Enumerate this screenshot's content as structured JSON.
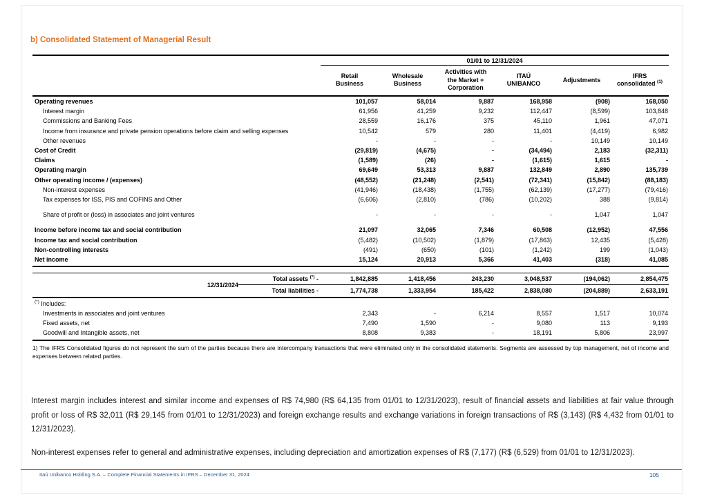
{
  "page": {
    "title": "b) Consolidated Statement of Managerial Result",
    "footer": {
      "left": "Itaú Unibanco Holding S.A. – Complete Financial Statements in IFRS – December 31, 2024",
      "page_number": "105"
    },
    "colors": {
      "title_orange": "#E2711D",
      "footer_blue": "#2A5A8C",
      "text": "#000000"
    }
  },
  "table": {
    "period_header": "01/01 to 12/31/2024",
    "columns": [
      {
        "lines": [
          "Retail",
          "Business"
        ]
      },
      {
        "lines": [
          "Wholesale",
          "Business"
        ]
      },
      {
        "lines": [
          "Activities with",
          "the Market +",
          "Corporation"
        ]
      },
      {
        "lines": [
          "ITAÚ",
          "UNIBANCO"
        ]
      },
      {
        "lines": [
          "Adjustments"
        ]
      },
      {
        "lines": [
          "IFRS",
          "consolidated"
        ],
        "sup": "(1)"
      }
    ],
    "rows": [
      {
        "label": "Operating revenues",
        "bold_label": true,
        "bold_values": true,
        "indent": false,
        "values": [
          "101,057",
          "58,014",
          "9,887",
          "168,958",
          "(908)",
          "168,050"
        ]
      },
      {
        "label": "Interest margin",
        "bold_label": false,
        "bold_values": false,
        "indent": true,
        "values": [
          "61,956",
          "41,259",
          "9,232",
          "112,447",
          "(8,599)",
          "103,848"
        ]
      },
      {
        "label": "Commissions and Banking Fees",
        "bold_label": false,
        "bold_values": false,
        "indent": true,
        "values": [
          "28,559",
          "16,176",
          "375",
          "45,110",
          "1,961",
          "47,071"
        ]
      },
      {
        "label": "Income from insurance and private pension operations before  claim and selling expenses",
        "bold_label": false,
        "bold_values": false,
        "indent": true,
        "values": [
          "10,542",
          "579",
          "280",
          "11,401",
          "(4,419)",
          "6,982"
        ]
      },
      {
        "label": "Other revenues",
        "bold_label": false,
        "bold_values": false,
        "indent": true,
        "values": [
          "-",
          "-",
          "-",
          "-",
          "10,149",
          "10,149"
        ]
      },
      {
        "label": "Cost of Credit",
        "bold_label": true,
        "bold_values": true,
        "indent": false,
        "values": [
          "(29,819)",
          "(4,675)",
          "-",
          "(34,494)",
          "2,183",
          "(32,311)"
        ]
      },
      {
        "label": "Claims",
        "bold_label": true,
        "bold_values": true,
        "indent": false,
        "values": [
          "(1,589)",
          "(26)",
          "-",
          "(1,615)",
          "1,615",
          "-"
        ]
      },
      {
        "label": "Operating margin",
        "bold_label": true,
        "bold_values": true,
        "indent": false,
        "values": [
          "69,649",
          "53,313",
          "9,887",
          "132,849",
          "2,890",
          "135,739"
        ]
      },
      {
        "label": "Other operating  income / (expenses)",
        "bold_label": true,
        "bold_values": true,
        "indent": false,
        "values": [
          "(48,552)",
          "(21,248)",
          "(2,541)",
          "(72,341)",
          "(15,842)",
          "(88,183)"
        ]
      },
      {
        "label": "Non-interest expenses",
        "bold_label": false,
        "bold_values": false,
        "indent": true,
        "values": [
          "(41,946)",
          "(18,438)",
          "(1,755)",
          "(62,139)",
          "(17,277)",
          "(79,416)"
        ]
      },
      {
        "label": "Tax expenses for  ISS, PIS and COFINS and Other",
        "bold_label": false,
        "bold_values": false,
        "indent": true,
        "values": [
          "(6,606)",
          "(2,810)",
          "(786)",
          "(10,202)",
          "388",
          "(9,814)"
        ]
      },
      {
        "label": "Share of profit or (loss) in associates and joint ventures",
        "bold_label": false,
        "bold_values": false,
        "indent": true,
        "space_before": true,
        "values": [
          "-",
          "-",
          "-",
          "-",
          "1,047",
          "1,047"
        ]
      },
      {
        "label": "Income before income tax and social contribution",
        "bold_label": true,
        "bold_values": true,
        "indent": false,
        "space_before": true,
        "values": [
          "21,097",
          "32,065",
          "7,346",
          "60,508",
          "(12,952)",
          "47,556"
        ]
      },
      {
        "label": "Income tax and social contribution",
        "bold_label": true,
        "bold_values": false,
        "indent": false,
        "values": [
          "(5,482)",
          "(10,502)",
          "(1,879)",
          "(17,863)",
          "12,435",
          "(5,428)"
        ]
      },
      {
        "label": "Non-controlling interests",
        "bold_label": true,
        "bold_values": false,
        "indent": false,
        "values": [
          "(491)",
          "(650)",
          "(101)",
          "(1,242)",
          "199",
          "(1,043)"
        ]
      },
      {
        "label": "Net income",
        "bold_label": true,
        "bold_values": true,
        "indent": false,
        "values": [
          "15,124",
          "20,913",
          "5,366",
          "41,403",
          "(318)",
          "41,085"
        ]
      }
    ],
    "assets_section": {
      "date_label": "12/31/2024",
      "rows": [
        {
          "label": "Total assets",
          "marker": "(*)",
          "suffix": "-",
          "values": [
            "1,842,885",
            "1,418,456",
            "243,230",
            "3,048,537",
            "(194,062)",
            "2,854,475"
          ]
        },
        {
          "label": "Total liabilities",
          "suffix": "-",
          "values": [
            "1,774,738",
            "1,333,954",
            "185,422",
            "2,838,080",
            "(204,889)",
            "2,633,191"
          ]
        }
      ]
    },
    "includes_section": {
      "marker": "(*)",
      "label": "Includes:",
      "rows": [
        {
          "label": "Investments in associates and joint ventures",
          "values": [
            "2,343",
            "-",
            "6,214",
            "8,557",
            "1,517",
            "10,074"
          ]
        },
        {
          "label": "Fixed assets, net",
          "values": [
            "7,490",
            "1,590",
            "-",
            "9,080",
            "113",
            "9,193"
          ]
        },
        {
          "label": "Goodwill and Intangible assets, net",
          "values": [
            "8,808",
            "9,383",
            "-",
            "18,191",
            "5,806",
            "23,997"
          ]
        }
      ]
    },
    "footnote": "1) The IFRS Consolidated figures do not represent the sum of the parties because there are intercompany transactions that were eliminated only in the consolidated statements. Segments are assessed by top management, net of income and expenses between related parties."
  },
  "paragraphs": [
    "Interest margin includes interest and similar income and expenses of R$ 74,980 (R$ 64,135 from 01/01 to 12/31/2023), result of financial assets and liabilities at fair value through profit or loss of R$ 32,011 (R$ 29,145 from 01/01 to 12/31/2023) and foreign exchange results and exchange variations in foreign transactions of R$ (3,143) (R$ 4,432 from 01/01 to 12/31/2023).",
    "Non-interest expenses refer to general and administrative expenses, including depreciation and amortization expenses of R$ (7,177) (R$ (6,529) from 01/01 to 12/31/2023)."
  ]
}
